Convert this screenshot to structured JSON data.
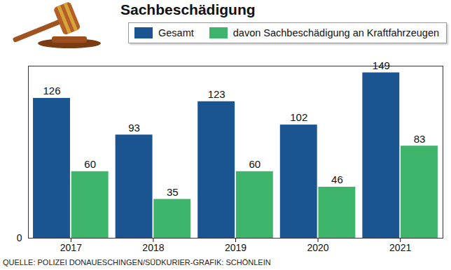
{
  "chart_data": {
    "type": "bar",
    "title": "Sachbeschädigung",
    "categories": [
      "2017",
      "2018",
      "2019",
      "2020",
      "2021"
    ],
    "series": [
      {
        "name": "Gesamt",
        "color": "#1b5591",
        "values": [
          126,
          93,
          123,
          102,
          149
        ]
      },
      {
        "name": "davon Sachbeschädigung an Kraftfahrzeugen",
        "color": "#3fb56b",
        "values": [
          60,
          35,
          60,
          46,
          83
        ]
      }
    ],
    "ylim": [
      0,
      155
    ],
    "yticks": [
      0
    ],
    "data_labels": true,
    "grid": false,
    "legend": "top",
    "caption": "QUELLE: POLIZEI DONAUESCHINGEN/SÜDKURIER-GRAFIK: SCHÖNLEIN"
  }
}
